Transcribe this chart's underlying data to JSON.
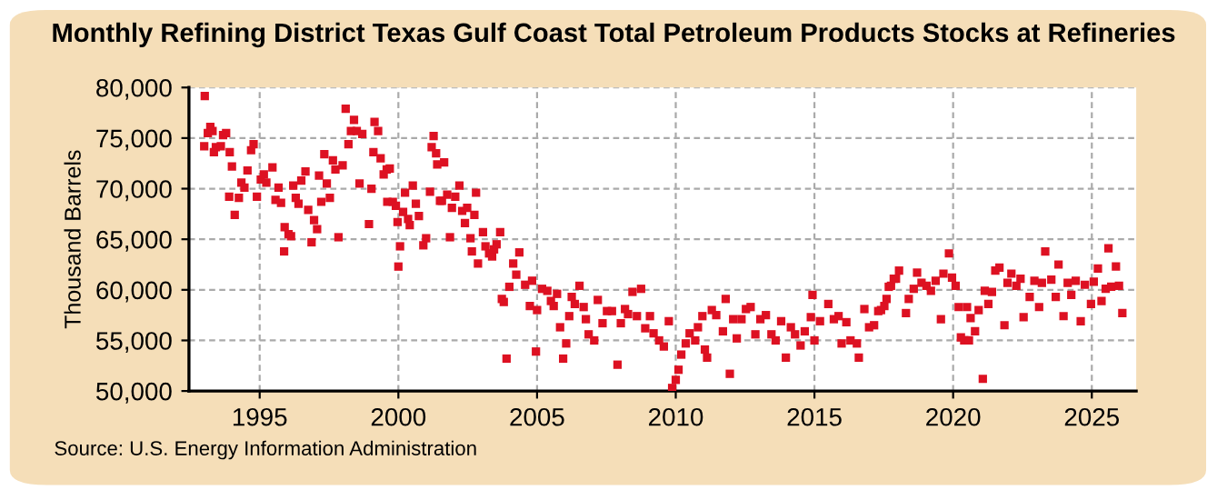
{
  "chart_data": {
    "type": "scatter",
    "title": "Monthly Refining District Texas Gulf Coast Total Petroleum Products Stocks at Refineries",
    "ylabel": "Thousand Barrels",
    "annotations": [
      "Source: U.S. Energy Information Administration"
    ],
    "xlim": [
      1992.45,
      2026.6
    ],
    "xticks": [
      1995,
      2000,
      2005,
      2010,
      2015,
      2020,
      2025
    ],
    "ylim": [
      50000,
      80000
    ],
    "yticks": [
      {
        "value": 50000,
        "label": "50,000"
      },
      {
        "value": 55000,
        "label": "55,000"
      },
      {
        "value": 60000,
        "label": "60,000"
      },
      {
        "value": 65000,
        "label": "65,000"
      },
      {
        "value": 70000,
        "label": "70,000"
      },
      {
        "value": 75000,
        "label": "75,000"
      },
      {
        "value": 80000,
        "label": "80,000"
      }
    ],
    "grid": true,
    "marker": "square",
    "series": [
      {
        "color": "#dd1122",
        "x": [
          1993.0,
          1993.02,
          1993.13,
          1993.22,
          1993.3,
          1993.35,
          1993.42,
          1993.6,
          1993.68,
          1993.79,
          1993.9,
          1993.92,
          1994.0,
          1994.1,
          1994.25,
          1994.34,
          1994.45,
          1994.56,
          1994.69,
          1994.78,
          1994.9,
          1995.04,
          1995.15,
          1995.24,
          1995.46,
          1995.57,
          1995.68,
          1995.77,
          1995.88,
          1995.9,
          1996.04,
          1996.13,
          1996.21,
          1996.3,
          1996.4,
          1996.5,
          1996.65,
          1996.75,
          1996.87,
          1996.96,
          1997.07,
          1997.14,
          1997.22,
          1997.33,
          1997.42,
          1997.53,
          1997.64,
          1997.73,
          1997.84,
          1997.99,
          1998.1,
          1998.2,
          1998.29,
          1998.4,
          1998.5,
          1998.6,
          1998.7,
          1998.94,
          1999.03,
          1999.1,
          1999.14,
          1999.27,
          1999.36,
          1999.47,
          1999.58,
          1999.6,
          1999.69,
          1999.8,
          1999.91,
          1999.97,
          2000.0,
          2000.06,
          2000.17,
          2000.24,
          2000.35,
          2000.41,
          2000.52,
          2000.63,
          2000.74,
          2000.9,
          2001.0,
          2001.14,
          2001.2,
          2001.27,
          2001.36,
          2001.4,
          2001.5,
          2001.57,
          2001.65,
          2001.76,
          2001.86,
          2001.93,
          2002.05,
          2002.2,
          2002.3,
          2002.4,
          2002.48,
          2002.6,
          2002.65,
          2002.74,
          2002.8,
          2002.87,
          2003.05,
          2003.14,
          2003.27,
          2003.38,
          2003.45,
          2003.54,
          2003.67,
          2003.73,
          2003.8,
          2003.9,
          2004.0,
          2004.14,
          2004.25,
          2004.36,
          2004.57,
          2004.74,
          2004.82,
          2004.96,
          2005.0,
          2005.18,
          2005.37,
          2005.5,
          2005.6,
          2005.72,
          2005.83,
          2005.94,
          2006.05,
          2006.16,
          2006.25,
          2006.36,
          2006.53,
          2006.68,
          2006.76,
          2006.86,
          2007.06,
          2007.19,
          2007.36,
          2007.52,
          2007.7,
          2007.9,
          2008.02,
          2008.17,
          2008.28,
          2008.44,
          2008.6,
          2008.75,
          2008.9,
          2009.07,
          2009.2,
          2009.4,
          2009.57,
          2009.75,
          2009.87,
          2010.0,
          2010.1,
          2010.2,
          2010.36,
          2010.5,
          2010.7,
          2010.8,
          2010.96,
          2011.05,
          2011.13,
          2011.3,
          2011.46,
          2011.7,
          2011.8,
          2011.95,
          2012.07,
          2012.2,
          2012.37,
          2012.53,
          2012.7,
          2012.87,
          2013.05,
          2013.25,
          2013.45,
          2013.6,
          2013.8,
          2013.97,
          2014.15,
          2014.3,
          2014.5,
          2014.65,
          2014.87,
          2014.93,
          2015.0,
          2015.2,
          2015.5,
          2015.7,
          2015.87,
          2015.98,
          2016.15,
          2016.3,
          2016.53,
          2016.6,
          2016.8,
          2016.97,
          2017.15,
          2017.3,
          2017.4,
          2017.52,
          2017.6,
          2017.68,
          2017.76,
          2017.86,
          2017.94,
          2018.05,
          2018.3,
          2018.4,
          2018.58,
          2018.7,
          2018.86,
          2019.04,
          2019.2,
          2019.37,
          2019.56,
          2019.65,
          2019.85,
          2019.96,
          2020.09,
          2020.2,
          2020.28,
          2020.4,
          2020.5,
          2020.57,
          2020.63,
          2020.79,
          2020.92,
          2021.07,
          2021.14,
          2021.27,
          2021.4,
          2021.52,
          2021.67,
          2021.85,
          2021.96,
          2022.1,
          2022.28,
          2022.43,
          2022.54,
          2022.76,
          2022.93,
          2023.1,
          2023.2,
          2023.32,
          2023.54,
          2023.7,
          2023.8,
          2023.98,
          2024.13,
          2024.26,
          2024.42,
          2024.6,
          2024.75,
          2024.97,
          2025.07,
          2025.22,
          2025.35,
          2025.5,
          2025.6,
          2025.7,
          2025.87,
          2025.98,
          2026.1
        ],
        "values": [
          74200,
          79150,
          75500,
          76100,
          75700,
          73600,
          74100,
          74200,
          75300,
          75500,
          69200,
          73600,
          72200,
          67400,
          69100,
          70600,
          70100,
          71800,
          73800,
          74400,
          69200,
          70900,
          71400,
          70600,
          72100,
          68900,
          70100,
          68600,
          63800,
          66200,
          65500,
          65300,
          70300,
          69100,
          68500,
          70800,
          71700,
          67900,
          64700,
          66900,
          66000,
          71300,
          68700,
          73400,
          70500,
          69100,
          72800,
          71900,
          65200,
          72300,
          77900,
          74400,
          75700,
          76800,
          75700,
          70500,
          75400,
          66500,
          70000,
          73600,
          76600,
          75700,
          73000,
          71400,
          71900,
          68700,
          72000,
          68700,
          68300,
          66700,
          62300,
          64300,
          67700,
          69600,
          67000,
          66400,
          70300,
          68500,
          67300,
          64400,
          65100,
          69700,
          74100,
          75200,
          73500,
          72400,
          68800,
          68800,
          72600,
          69400,
          65200,
          68100,
          69200,
          70300,
          67800,
          66600,
          68100,
          65100,
          63800,
          67400,
          69600,
          62600,
          65700,
          64300,
          63600,
          63300,
          64000,
          64500,
          65700,
          59100,
          58800,
          53200,
          60300,
          62600,
          61500,
          63700,
          60500,
          58400,
          60900,
          53900,
          58000,
          60100,
          59900,
          58900,
          58400,
          59600,
          56300,
          53200,
          54700,
          57400,
          59300,
          58600,
          60400,
          58300,
          57100,
          55600,
          55000,
          59000,
          56700,
          57900,
          57900,
          52600,
          56700,
          58100,
          57600,
          59800,
          57400,
          60100,
          56200,
          57400,
          55700,
          55000,
          54400,
          56900,
          50300,
          51100,
          52100,
          53600,
          54700,
          55700,
          55000,
          56300,
          57400,
          54100,
          53300,
          58000,
          57500,
          55900,
          59100,
          51700,
          57100,
          55200,
          57100,
          58100,
          58300,
          55600,
          57100,
          57500,
          55600,
          55000,
          56900,
          53300,
          56300,
          55600,
          54500,
          55900,
          57300,
          59500,
          55000,
          56900,
          58600,
          57100,
          57400,
          54700,
          56800,
          55000,
          54700,
          53300,
          58100,
          56300,
          56500,
          57900,
          58000,
          58400,
          59100,
          60300,
          60400,
          61100,
          61100,
          61900,
          57700,
          59100,
          60100,
          61700,
          60700,
          60400,
          59900,
          60900,
          57100,
          61600,
          63600,
          61200,
          60400,
          58300,
          55300,
          55000,
          58300,
          55000,
          57200,
          55900,
          58000,
          51200,
          59900,
          58600,
          59800,
          61900,
          62200,
          56500,
          60700,
          61600,
          60400,
          61100,
          57300,
          59300,
          60900,
          58300,
          60700,
          63800,
          61000,
          59300,
          62500,
          57400,
          60700,
          59500,
          60900,
          56900,
          60500,
          58600,
          60800,
          62100,
          58900,
          60100,
          64100,
          60300,
          62300,
          60400,
          57700
        ]
      }
    ]
  }
}
